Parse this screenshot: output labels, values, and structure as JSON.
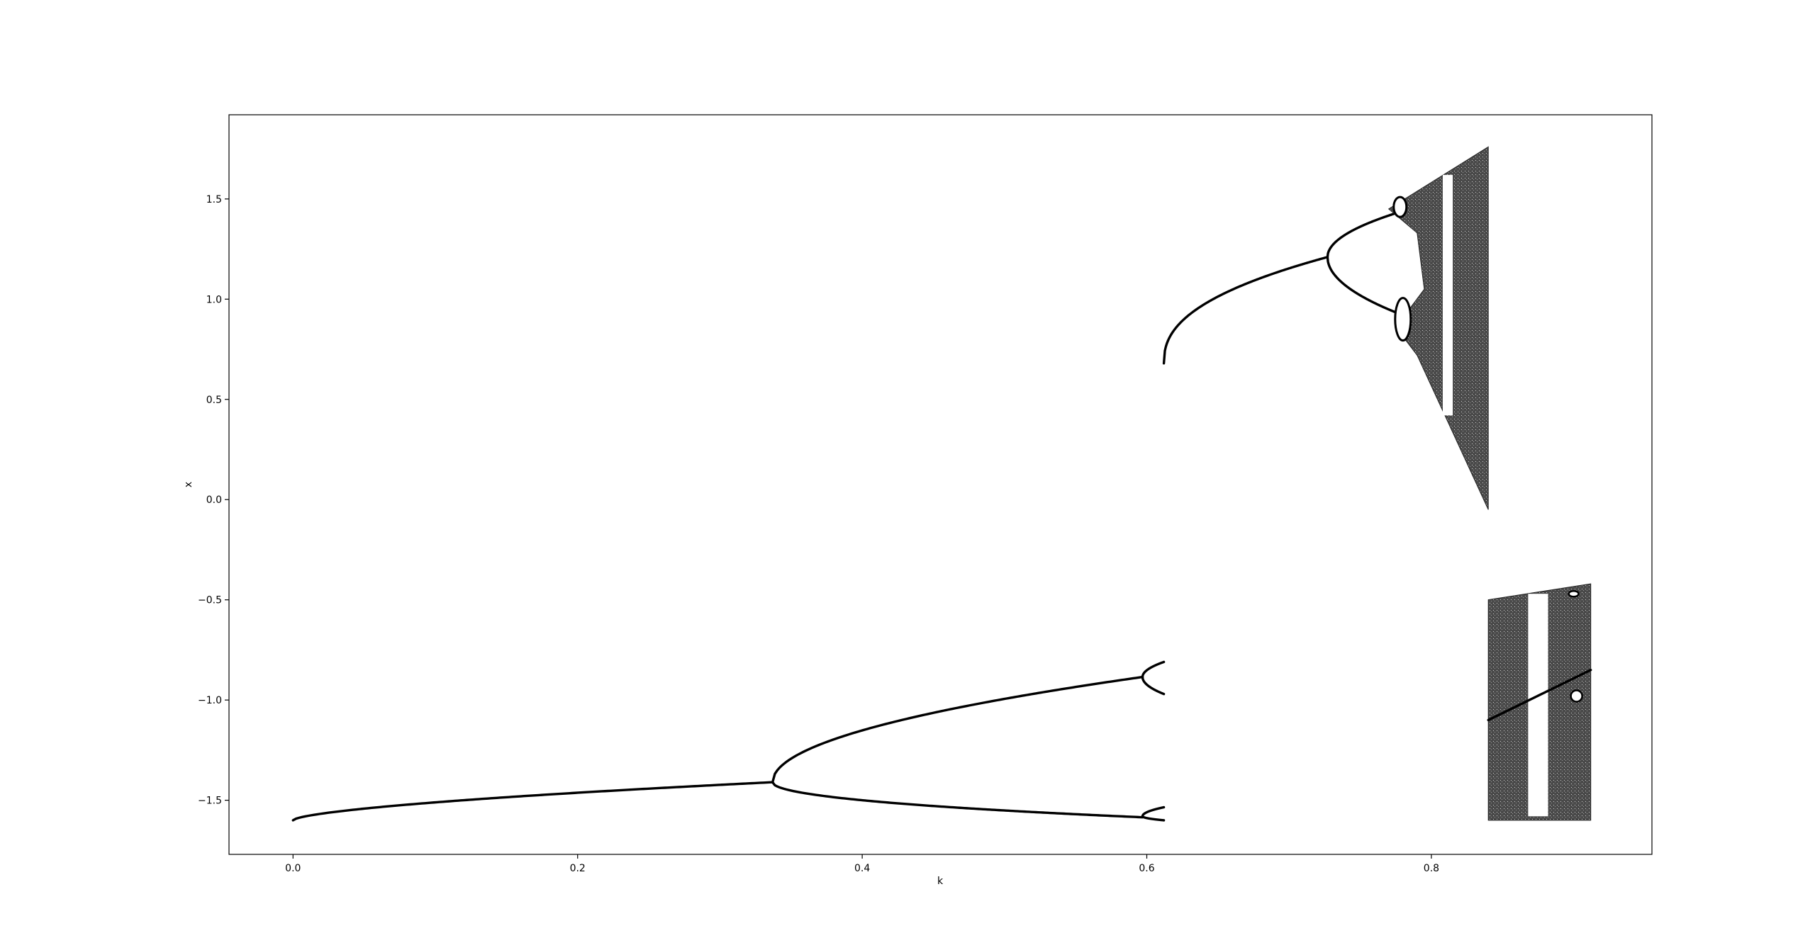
{
  "chart_data": {
    "type": "scatter",
    "title": "",
    "xlabel": "k",
    "ylabel": "x",
    "xlim": [
      -0.045,
      0.955
    ],
    "ylim": [
      -1.77,
      1.92
    ],
    "xticks": [
      {
        "value": 0.0,
        "label": "0.0"
      },
      {
        "value": 0.2,
        "label": "0.2"
      },
      {
        "value": 0.4,
        "label": "0.4"
      },
      {
        "value": 0.6,
        "label": "0.6"
      },
      {
        "value": 0.8,
        "label": "0.8"
      }
    ],
    "yticks": [
      {
        "value": 1.5,
        "label": "1.5"
      },
      {
        "value": 1.0,
        "label": "1.0"
      },
      {
        "value": 0.5,
        "label": "0.5"
      },
      {
        "value": 0.0,
        "label": "0.0"
      },
      {
        "value": -0.5,
        "label": "−0.5"
      },
      {
        "value": -1.0,
        "label": "−1.0"
      },
      {
        "value": -1.5,
        "label": "−1.5"
      }
    ],
    "grid": false,
    "legend": "none",
    "marker_color": "#000000",
    "series": [
      {
        "values": [
          {
            "k": 0.0,
            "x": -1.6
          },
          {
            "k": 0.1,
            "x": -1.52
          },
          {
            "k": 0.2,
            "x": -1.47
          },
          {
            "k": 0.3,
            "x": -1.43
          },
          {
            "k": 0.337,
            "x": -1.41
          },
          {
            "k": 0.45,
            "x": -1.0
          },
          {
            "k": 0.45,
            "x": -1.59
          },
          {
            "k": 0.597,
            "x": -0.885
          },
          {
            "k": 0.597,
            "x": -1.58
          },
          {
            "k": 0.612,
            "x": -0.81
          },
          {
            "k": 0.612,
            "x": -0.97
          },
          {
            "k": 0.612,
            "x": -1.54
          },
          {
            "k": 0.612,
            "x": -1.6
          },
          {
            "k": 0.612,
            "x": 0.68
          },
          {
            "k": 0.7,
            "x": 1.15
          },
          {
            "k": 0.727,
            "x": 1.21
          },
          {
            "k": 0.78,
            "x": 1.44
          },
          {
            "k": 0.78,
            "x": 0.9
          },
          {
            "k": 0.84,
            "x": 1.76
          },
          {
            "k": 0.84,
            "x": -0.05
          },
          {
            "k": 0.84,
            "x": -0.5
          },
          {
            "k": 0.84,
            "x": -1.6
          },
          {
            "k": 0.912,
            "x": -0.42
          },
          {
            "k": 0.912,
            "x": -1.6
          }
        ]
      }
    ]
  }
}
